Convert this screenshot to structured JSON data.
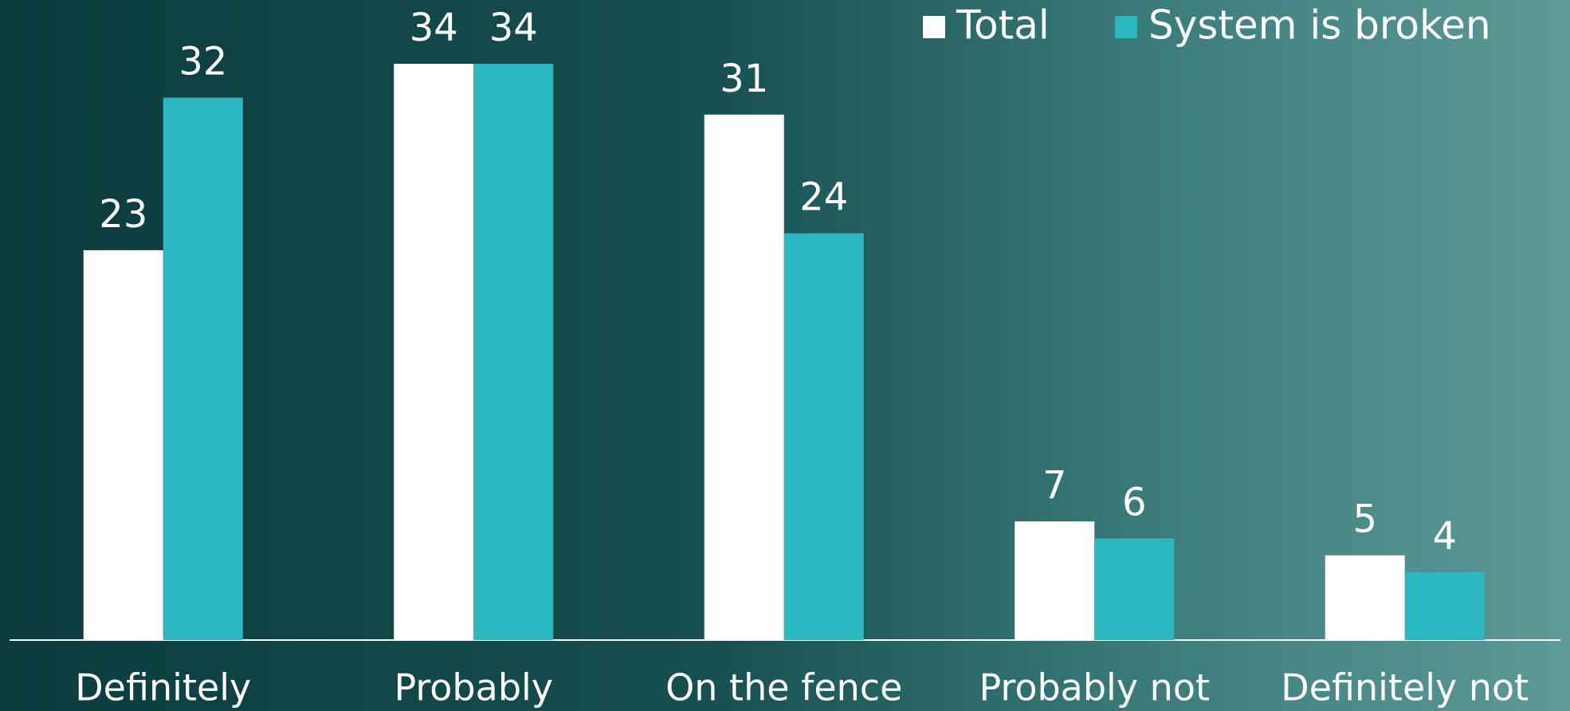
{
  "chart_data": {
    "type": "bar",
    "categories": [
      "Definitely",
      "Probably",
      "On the fence",
      "Probably not",
      "Definitely not"
    ],
    "series": [
      {
        "name": "Total",
        "color": "#ffffff",
        "values": [
          23,
          34,
          31,
          7,
          5
        ]
      },
      {
        "name": "System is broken",
        "color": "#29b8c0",
        "values": [
          32,
          34,
          24,
          6,
          4
        ]
      }
    ]
  }
}
